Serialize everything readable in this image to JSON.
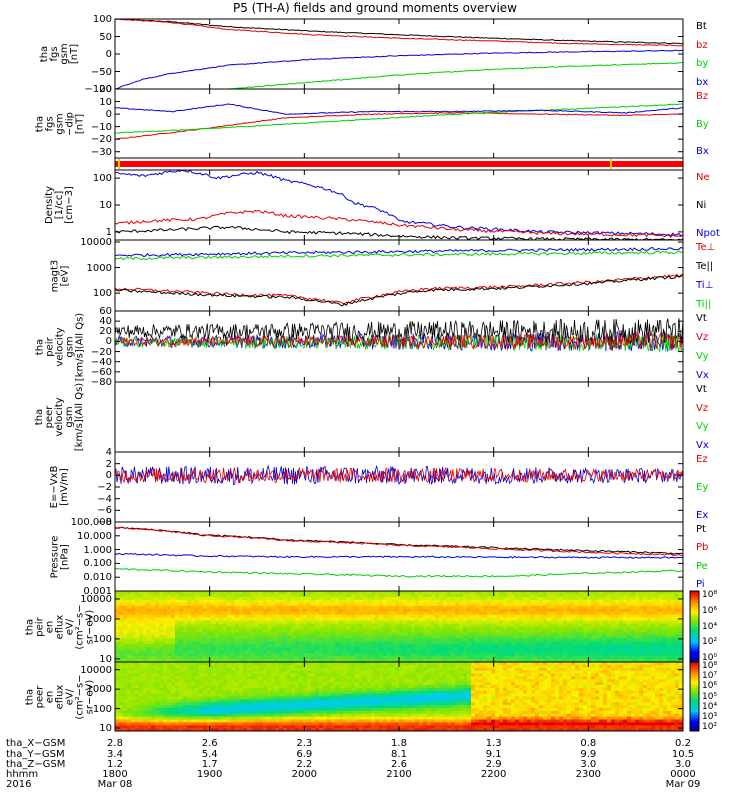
{
  "title": "P5 (TH-A) fields and ground moments overview",
  "colors": {
    "black": "#000000",
    "red": "#e00000",
    "green": "#00d000",
    "blue": "#0000d8"
  },
  "chart_data": [
    {
      "type": "line",
      "ytitle": "tha\nfgs\ngsm\n[nT]",
      "ylim": [
        -100,
        100
      ],
      "yticks": [
        "100",
        "50",
        "0",
        "−50",
        "−100"
      ],
      "legend": [
        {
          "name": "Bt",
          "color": "black"
        },
        {
          "name": "bz",
          "color": "red"
        },
        {
          "name": "by",
          "color": "green"
        },
        {
          "name": "bx",
          "color": "blue"
        }
      ],
      "series": [
        {
          "name": "Bt",
          "x": [
            0,
            0.1,
            0.2,
            0.35,
            0.5,
            0.65,
            0.8,
            1.0
          ],
          "values": [
            100,
            92,
            78,
            65,
            55,
            46,
            38,
            30
          ]
        },
        {
          "name": "bz",
          "x": [
            0,
            0.1,
            0.2,
            0.35,
            0.5,
            0.65,
            0.8,
            1.0
          ],
          "values": [
            100,
            90,
            70,
            55,
            45,
            38,
            30,
            24
          ]
        },
        {
          "name": "by",
          "x": [
            0.2,
            0.35,
            0.5,
            0.65,
            0.8,
            1.0
          ],
          "values": [
            -100,
            -80,
            -60,
            -45,
            -35,
            -25
          ]
        },
        {
          "name": "bx",
          "x": [
            0,
            0.05,
            0.1,
            0.2,
            0.35,
            0.5,
            0.65,
            0.8,
            1.0
          ],
          "values": [
            -100,
            -72,
            -55,
            -32,
            -15,
            -5,
            2,
            6,
            10
          ]
        }
      ]
    },
    {
      "type": "line",
      "ytitle": "tha\nfgs\ngsm\n−dip\n[nT]",
      "ylim": [
        -35,
        20
      ],
      "yticks": [
        "20",
        "10",
        "0",
        "−10",
        "−20",
        "−30"
      ],
      "legend": [
        {
          "name": "Bz",
          "color": "red"
        },
        {
          "name": "By",
          "color": "green"
        },
        {
          "name": "Bx",
          "color": "blue"
        }
      ],
      "series": [
        {
          "name": "Bz",
          "x": [
            0,
            0.15,
            0.3,
            0.45,
            0.6,
            0.75,
            0.9,
            1.0
          ],
          "values": [
            -20,
            -12,
            -3,
            0,
            1,
            0,
            -1,
            0
          ]
        },
        {
          "name": "By",
          "x": [
            0,
            0.15,
            0.3,
            0.45,
            0.6,
            0.75,
            0.9,
            1.0
          ],
          "values": [
            -15,
            -12,
            -8,
            -4,
            0,
            3,
            6,
            8
          ]
        },
        {
          "name": "Bx",
          "x": [
            0,
            0.1,
            0.2,
            0.3,
            0.45,
            0.6,
            0.75,
            0.9,
            1.0
          ],
          "values": [
            5,
            2,
            8,
            0,
            2,
            2,
            3,
            1,
            5
          ]
        }
      ]
    },
    {
      "type": "line",
      "ytitle": "Density\n[1/cc]\n[cm−3]",
      "ylog": true,
      "ylim": [
        0.5,
        200
      ],
      "yticks": [
        "100",
        "10",
        "1"
      ],
      "legend": [
        {
          "name": "Ne",
          "color": "red"
        },
        {
          "name": "Ni",
          "color": "black"
        },
        {
          "name": "Npot",
          "color": "blue"
        }
      ],
      "series": [
        {
          "name": "Npot",
          "x": [
            0,
            0.05,
            0.12,
            0.18,
            0.25,
            0.3,
            0.38,
            0.42,
            0.5,
            0.6,
            0.75,
            1.0
          ],
          "values": [
            150,
            120,
            200,
            100,
            160,
            80,
            35,
            12,
            2.5,
            1.5,
            1.0,
            0.8
          ]
        },
        {
          "name": "Ne",
          "x": [
            0,
            0.05,
            0.15,
            0.2,
            0.25,
            0.3,
            0.4,
            0.5,
            0.6,
            0.75,
            1.0
          ],
          "values": [
            2,
            2.5,
            3,
            5,
            6,
            4,
            3,
            1.8,
            1.2,
            0.9,
            0.7
          ]
        },
        {
          "name": "Ni",
          "x": [
            0,
            0.1,
            0.2,
            0.3,
            0.4,
            0.5,
            0.6,
            0.75,
            1.0
          ],
          "values": [
            1,
            1.2,
            1.5,
            1.0,
            0.9,
            0.7,
            0.6,
            0.55,
            0.5
          ]
        }
      ]
    },
    {
      "type": "line",
      "ytitle": "magt3\n[eV]",
      "ylog": true,
      "ylim": [
        20,
        12000
      ],
      "yticks": [
        "10000",
        "1000",
        "100"
      ],
      "legend": [
        {
          "name": "Te⊥",
          "color": "red"
        },
        {
          "name": "Te||",
          "color": "black"
        },
        {
          "name": "Ti⊥",
          "color": "blue"
        },
        {
          "name": "Ti||",
          "color": "green"
        }
      ],
      "series": [
        {
          "name": "Ti⊥",
          "x": [
            0,
            0.2,
            0.4,
            0.6,
            0.8,
            1.0
          ],
          "values": [
            3000,
            3500,
            4000,
            4500,
            5000,
            5500
          ]
        },
        {
          "name": "Ti||",
          "x": [
            0,
            0.2,
            0.4,
            0.6,
            0.8,
            1.0
          ],
          "values": [
            2200,
            2600,
            3000,
            3300,
            3600,
            4000
          ]
        },
        {
          "name": "Te⊥",
          "x": [
            0,
            0.1,
            0.2,
            0.3,
            0.4,
            0.45,
            0.55,
            0.7,
            0.85,
            1.0
          ],
          "values": [
            150,
            120,
            90,
            80,
            40,
            70,
            150,
            180,
            280,
            500
          ]
        },
        {
          "name": "Te||",
          "x": [
            0,
            0.1,
            0.2,
            0.3,
            0.4,
            0.45,
            0.55,
            0.7,
            0.85,
            1.0
          ],
          "values": [
            130,
            100,
            80,
            70,
            35,
            60,
            130,
            160,
            250,
            450
          ]
        }
      ]
    },
    {
      "type": "line",
      "ytitle": "tha\npeir\nvelocity\ngsm\n[km/s](All Qs)",
      "ylim": [
        -80,
        60
      ],
      "yticks": [
        "60",
        "40",
        "20",
        "0",
        "−20",
        "−40",
        "−60",
        "−80"
      ],
      "legend": [
        {
          "name": "Vt",
          "color": "black"
        },
        {
          "name": "Vz",
          "color": "red"
        },
        {
          "name": "Vy",
          "color": "green"
        },
        {
          "name": "Vx",
          "color": "blue"
        }
      ],
      "noise": [
        {
          "name": "Vx",
          "center": 0,
          "amp": 18
        },
        {
          "name": "Vy",
          "center": -2,
          "amp": 16
        },
        {
          "name": "Vt",
          "center": 20,
          "amp": 22
        },
        {
          "name": "Vz",
          "center": 0,
          "amp": 14
        }
      ]
    },
    {
      "type": "line",
      "ytitle": "tha\npeer\nvelocity\ngsm\n[km/s](All Qs)",
      "legend": [
        {
          "name": "Vt",
          "color": "black"
        },
        {
          "name": "Vz",
          "color": "red"
        },
        {
          "name": "Vy",
          "color": "green"
        },
        {
          "name": "Vx",
          "color": "blue"
        }
      ],
      "series": []
    },
    {
      "type": "line",
      "ytitle": "E=−VxB\n[mV/m]",
      "ylim": [
        -8,
        4
      ],
      "yticks": [
        "4",
        "2",
        "0",
        "−2",
        "−4",
        "−6",
        "−8"
      ],
      "legend": [
        {
          "name": "Ez",
          "color": "red"
        },
        {
          "name": "Ey",
          "color": "green"
        },
        {
          "name": "Ex",
          "color": "blue"
        }
      ],
      "noise": [
        {
          "name": "Ex",
          "center": 0,
          "amp": 1.6
        },
        {
          "name": "Ez",
          "center": 0,
          "amp": 1.3
        }
      ]
    },
    {
      "type": "line",
      "ytitle": "Pressure\n[nPa]",
      "ylog": true,
      "ylim": [
        0.001,
        100
      ],
      "yticks": [
        "100.000",
        "10.000",
        "1.000",
        "0.100",
        "0.010",
        "0.001"
      ],
      "legend": [
        {
          "name": "Pt",
          "color": "black"
        },
        {
          "name": "Pb",
          "color": "red"
        },
        {
          "name": "Pe",
          "color": "green"
        },
        {
          "name": "Pi",
          "color": "blue"
        }
      ],
      "series": [
        {
          "name": "Pt",
          "x": [
            0,
            0.15,
            0.3,
            0.5,
            0.7,
            0.85,
            1.0
          ],
          "values": [
            40,
            12,
            5,
            2.2,
            1.2,
            0.8,
            0.5
          ]
        },
        {
          "name": "Pb",
          "x": [
            0,
            0.15,
            0.3,
            0.5,
            0.7,
            0.85,
            1.0
          ],
          "values": [
            38,
            11,
            4.5,
            2.0,
            1.0,
            0.6,
            0.4
          ]
        },
        {
          "name": "Pi",
          "x": [
            0,
            0.15,
            0.3,
            0.5,
            0.7,
            0.85,
            1.0
          ],
          "values": [
            0.5,
            0.35,
            0.3,
            0.3,
            0.28,
            0.27,
            0.26
          ]
        },
        {
          "name": "Pe",
          "x": [
            0,
            0.15,
            0.3,
            0.5,
            0.7,
            0.85,
            1.0
          ],
          "values": [
            0.04,
            0.025,
            0.018,
            0.012,
            0.012,
            0.02,
            0.03
          ]
        }
      ]
    },
    {
      "type": "heatmap",
      "ytitle": "tha\npeir\nen\neflux\neV/\n(cm²−s−\nsr−eV)",
      "ylog": true,
      "ylim": [
        7,
        25000
      ],
      "yticks": [
        "10000",
        "1000",
        "100",
        "10"
      ],
      "colorbar": {
        "label": "[eV/(cm²−s−sr−eV)](All Qs)",
        "ticks": [
          "10⁸",
          "10⁶",
          "10⁴",
          "10²",
          "10⁰"
        ]
      }
    },
    {
      "type": "heatmap",
      "ytitle": "tha\npeer\nen\neflux\neV/\n(cm²−s−\nsr−eV)",
      "ylog": true,
      "ylim": [
        7,
        25000
      ],
      "yticks": [
        "10000",
        "1000",
        "100",
        "10"
      ],
      "colorbar": {
        "label": "[eV/(cm²−s−sr−eV)](All Qs)",
        "ticks": [
          "10⁸",
          "10⁷",
          "10⁶",
          "10⁵",
          "10⁴",
          "10³",
          "10²"
        ]
      }
    }
  ],
  "footer": {
    "row_labels": [
      "tha_X−GSM",
      "tha_Y−GSM",
      "tha_Z−GSM",
      "hhmm",
      "2016"
    ],
    "columns": [
      {
        "x": "2.8",
        "y": "3.4",
        "z": "1.2",
        "t": "1800",
        "d": "Mar 08"
      },
      {
        "x": "2.6",
        "y": "5.4",
        "z": "1.7",
        "t": "1900",
        "d": ""
      },
      {
        "x": "2.3",
        "y": "6.9",
        "z": "2.2",
        "t": "2000",
        "d": ""
      },
      {
        "x": "1.8",
        "y": "8.1",
        "z": "2.6",
        "t": "2100",
        "d": ""
      },
      {
        "x": "1.3",
        "y": "9.1",
        "z": "2.9",
        "t": "2200",
        "d": ""
      },
      {
        "x": "0.8",
        "y": "9.9",
        "z": "3.0",
        "t": "2300",
        "d": ""
      },
      {
        "x": "0.2",
        "y": "10.5",
        "z": "3.0",
        "t": "0000",
        "d": "Mar 09"
      }
    ]
  }
}
